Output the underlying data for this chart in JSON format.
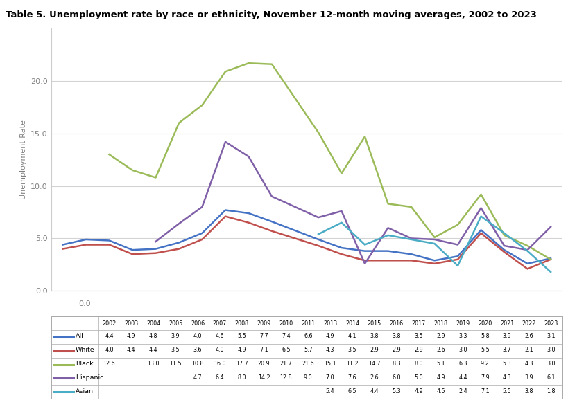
{
  "title": "Table 5. Unemployment rate by race or ethnicity, November 12-month moving averages, 2002 to 2023",
  "ylabel": "Unemployment Rate",
  "years": [
    2002,
    2003,
    2004,
    2005,
    2006,
    2007,
    2008,
    2009,
    2010,
    2011,
    2013,
    2014,
    2015,
    2016,
    2017,
    2018,
    2019,
    2020,
    2021,
    2022,
    2023
  ],
  "series": {
    "All": [
      4.4,
      4.9,
      4.8,
      3.9,
      4.0,
      4.6,
      5.5,
      7.7,
      7.4,
      6.6,
      4.9,
      4.1,
      3.8,
      3.8,
      3.5,
      2.9,
      3.3,
      5.8,
      3.9,
      2.6,
      3.1
    ],
    "White": [
      4.0,
      4.4,
      4.4,
      3.5,
      3.6,
      4.0,
      4.9,
      7.1,
      6.5,
      5.7,
      4.3,
      3.5,
      2.9,
      2.9,
      2.9,
      2.6,
      3.0,
      5.5,
      3.7,
      2.1,
      3.0
    ],
    "Black": [
      12.6,
      null,
      13.0,
      11.5,
      10.8,
      16.0,
      17.7,
      20.9,
      21.7,
      21.6,
      15.1,
      11.2,
      14.7,
      8.3,
      8.0,
      5.1,
      6.3,
      9.2,
      5.3,
      4.3,
      3.0
    ],
    "Hispanic": [
      null,
      null,
      null,
      null,
      4.7,
      6.4,
      8.0,
      14.2,
      12.8,
      9.0,
      7.0,
      7.6,
      2.6,
      6.0,
      5.0,
      4.9,
      4.4,
      7.9,
      4.3,
      3.9,
      6.1
    ],
    "Asian": [
      null,
      null,
      null,
      null,
      null,
      null,
      null,
      null,
      null,
      null,
      5.4,
      6.5,
      4.4,
      5.3,
      4.9,
      4.5,
      2.4,
      7.1,
      5.5,
      3.8,
      1.8
    ]
  },
  "colors": {
    "All": "#4472C4",
    "White": "#C0504D",
    "Black": "#9BBB59",
    "Hispanic": "#7F5FA7",
    "Asian": "#4BACC6"
  },
  "ylim": [
    0,
    25
  ],
  "yticks": [
    0.0,
    5.0,
    10.0,
    15.0,
    20.0
  ],
  "background_color": "#FFFFFF",
  "plot_bg_color": "#FFFFFF",
  "grid_color": "#D3D3D3"
}
